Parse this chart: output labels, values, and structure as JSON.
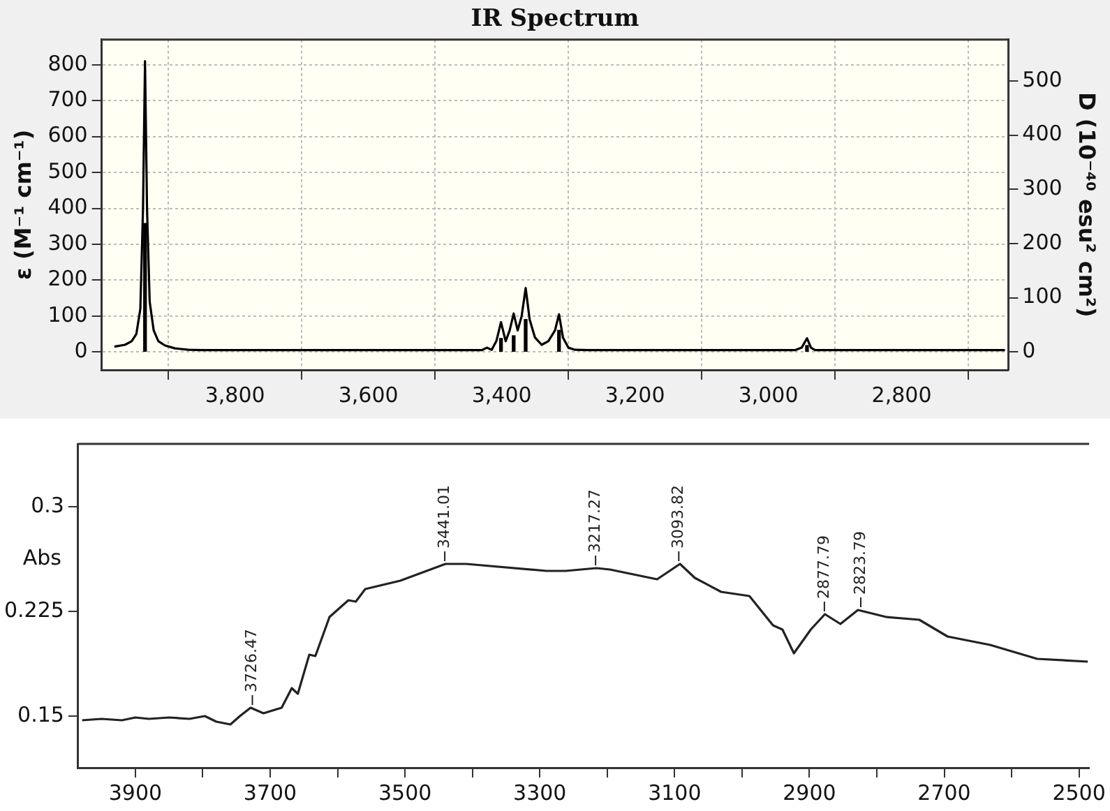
{
  "chart_data": [
    {
      "type": "line",
      "title": "IR Spectrum",
      "ylabel": "ε (M⁻¹ cm⁻¹)",
      "y2label": "D (10⁻⁴⁰ esu² cm²)",
      "xlim": [
        4000,
        2640
      ],
      "xticks": [
        {
          "value": 3800,
          "label": "3,800"
        },
        {
          "value": 3600,
          "label": "3,600"
        },
        {
          "value": 3400,
          "label": "3,400"
        },
        {
          "value": 3200,
          "label": "3,200"
        },
        {
          "value": 3000,
          "label": "3,000"
        },
        {
          "value": 2800,
          "label": "2,800"
        }
      ],
      "ylim": [
        -50,
        870
      ],
      "yticks": [
        0,
        100,
        200,
        300,
        400,
        500,
        600,
        700,
        800
      ],
      "y2lim": [
        -33,
        576
      ],
      "y2ticks": [
        0,
        100,
        200,
        300,
        400,
        500
      ],
      "grid": true,
      "series": [
        {
          "color": "#000000",
          "x": [
            3981,
            3965,
            3955,
            3948,
            3942,
            3938,
            3935,
            3932,
            3928,
            3922,
            3915,
            3905,
            3890,
            3870,
            3850,
            3700,
            3500,
            3430,
            3422,
            3415,
            3408,
            3401,
            3394,
            3388,
            3382,
            3376,
            3370,
            3364,
            3358,
            3350,
            3340,
            3330,
            3320,
            3314,
            3308,
            3300,
            3290,
            3270,
            3100,
            2960,
            2950,
            2942,
            2936,
            2930,
            2900,
            2645
          ],
          "values": [
            15,
            20,
            30,
            50,
            120,
            400,
            810,
            400,
            140,
            60,
            30,
            18,
            10,
            6,
            5,
            5,
            5,
            5,
            12,
            6,
            30,
            83,
            30,
            60,
            107,
            60,
            100,
            178,
            90,
            40,
            20,
            30,
            60,
            105,
            40,
            12,
            6,
            5,
            5,
            5,
            12,
            38,
            12,
            5,
            5,
            5
          ]
        },
        {
          "type": "bar",
          "axis": "y2",
          "color": "#000000",
          "x": [
            3935,
            3401,
            3382,
            3364,
            3314,
            2942
          ],
          "values": [
            237,
            25,
            30,
            60,
            40,
            12
          ]
        }
      ]
    },
    {
      "type": "line",
      "ylabel": "Abs",
      "xlim": [
        3985,
        2485
      ],
      "xticks": [
        3900,
        {
          "value": 3800,
          "label": null
        },
        3700,
        {
          "value": 3600,
          "label": null
        },
        3500,
        {
          "value": 3400,
          "label": null
        },
        3300,
        {
          "value": 3200,
          "label": null
        },
        3100,
        {
          "value": 3000,
          "label": null
        },
        2900,
        {
          "value": 2800,
          "label": null
        },
        2700,
        {
          "value": 2600,
          "label": null
        },
        2500
      ],
      "ylim": [
        0.113,
        0.345
      ],
      "yticks": [
        0.15,
        0.225,
        0.3
      ],
      "series": [
        {
          "color": "#222222",
          "x": [
            3979,
            3950,
            3920,
            3900,
            3880,
            3850,
            3820,
            3797,
            3780,
            3759,
            3745,
            3729,
            3710,
            3683,
            3668,
            3659,
            3642,
            3633,
            3612,
            3584,
            3573,
            3559,
            3507,
            3440,
            3409,
            3290,
            3262,
            3216,
            3196,
            3126,
            3092,
            3070,
            3031,
            2989,
            2954,
            2940,
            2923,
            2898,
            2877,
            2854,
            2828,
            2786,
            2737,
            2695,
            2632,
            2562,
            2487
          ],
          "values": [
            0.147,
            0.148,
            0.147,
            0.149,
            0.148,
            0.149,
            0.148,
            0.15,
            0.146,
            0.144,
            0.15,
            0.156,
            0.152,
            0.156,
            0.17,
            0.166,
            0.194,
            0.193,
            0.221,
            0.233,
            0.232,
            0.241,
            0.247,
            0.259,
            0.259,
            0.254,
            0.254,
            0.256,
            0.255,
            0.248,
            0.259,
            0.249,
            0.239,
            0.236,
            0.215,
            0.212,
            0.195,
            0.212,
            0.223,
            0.216,
            0.226,
            0.221,
            0.219,
            0.207,
            0.201,
            0.191,
            0.189
          ]
        }
      ],
      "annotations": [
        {
          "text": "3726.47",
          "x": 3726.47,
          "y": 0.156
        },
        {
          "text": "3441.01",
          "x": 3441.01,
          "y": 0.259
        },
        {
          "text": "3217.27",
          "x": 3217.27,
          "y": 0.256
        },
        {
          "text": "3093.82",
          "x": 3093.82,
          "y": 0.259
        },
        {
          "text": "2877.79",
          "x": 2877.79,
          "y": 0.223
        },
        {
          "text": "2823.79",
          "x": 2823.79,
          "y": 0.226
        }
      ]
    }
  ]
}
